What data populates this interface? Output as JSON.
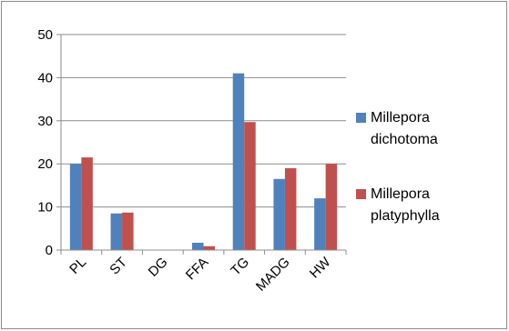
{
  "chart_data": {
    "type": "bar",
    "title": "",
    "xlabel": "",
    "ylabel": "",
    "categories": [
      "PL",
      "ST",
      "DG",
      "FFA",
      "TG",
      "MADG",
      "HW"
    ],
    "series": [
      {
        "name": "Millepora dichotoma",
        "values": [
          20,
          8.5,
          0,
          1.7,
          41,
          16.5,
          12
        ],
        "color": "#4f81bd",
        "legend_lines": [
          "Millepora",
          "dichotoma"
        ]
      },
      {
        "name": "Millepora platyphylla",
        "values": [
          21.5,
          8.7,
          0,
          0.9,
          29.7,
          19,
          20
        ],
        "color": "#c0504d",
        "legend_lines": [
          "Millepora",
          "platyphylla"
        ]
      }
    ],
    "ylim": [
      0,
      50
    ],
    "yticks": [
      0,
      10,
      20,
      30,
      40,
      50
    ],
    "grid": true,
    "legend_position": "right"
  }
}
